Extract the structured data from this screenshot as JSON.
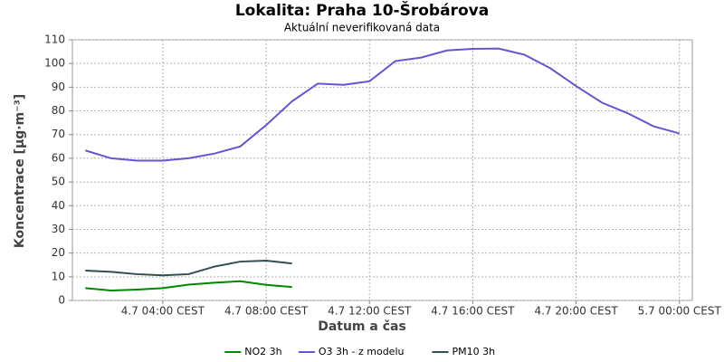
{
  "chart_data": {
    "type": "line",
    "title": "Lokalita: Praha 10-Šrobárova",
    "subtitle": "Aktuální neverifikovaná data",
    "x_label": "Datum a čas",
    "y_label": "Koncentrace [µg·m⁻³]",
    "x": [
      1,
      2,
      3,
      4,
      5,
      6,
      7,
      8,
      9,
      10,
      11,
      12,
      13,
      14,
      15,
      16,
      17,
      18,
      19,
      20,
      21,
      22,
      23,
      24
    ],
    "xlim": [
      0.5,
      24.5
    ],
    "xticks": [
      {
        "value": 4,
        "label": "4.7 04:00 CEST"
      },
      {
        "value": 8,
        "label": "4.7 08:00 CEST"
      },
      {
        "value": 12,
        "label": "4.7 12:00 CEST"
      },
      {
        "value": 16,
        "label": "4.7 16:00 CEST"
      },
      {
        "value": 20,
        "label": "4.7 20:00 CEST"
      },
      {
        "value": 24,
        "label": "5.7 00:00 CEST"
      }
    ],
    "ylim": [
      0,
      110
    ],
    "yticks": [
      0,
      10,
      20,
      30,
      40,
      50,
      60,
      70,
      80,
      90,
      100,
      110
    ],
    "grid": true,
    "legend": "bottom",
    "series": [
      {
        "name": "NO2 3h",
        "color": "#008800",
        "values": [
          5.2,
          4.2,
          4.6,
          5.2,
          6.7,
          7.5,
          8.1,
          6.6,
          5.7,
          null,
          null,
          null,
          null,
          null,
          null,
          null,
          null,
          null,
          null,
          null,
          null,
          null,
          null,
          null
        ]
      },
      {
        "name": "O3 3h - z modelu",
        "color": "#6655cc",
        "values": [
          63.3,
          60,
          59,
          59,
          60,
          62,
          65,
          74,
          84,
          91.5,
          91,
          92.5,
          101,
          102.5,
          105.5,
          106.2,
          106.3,
          103.7,
          98,
          90.5,
          83.5,
          79,
          73.5,
          70.5
        ]
      },
      {
        "name": "PM10 3h",
        "color": "#2f4f4f",
        "values": [
          12.6,
          12.1,
          11.1,
          10.6,
          11.1,
          14.3,
          16.4,
          16.8,
          15.6,
          null,
          null,
          null,
          null,
          null,
          null,
          null,
          null,
          null,
          null,
          null,
          null,
          null,
          null,
          null
        ]
      }
    ]
  }
}
